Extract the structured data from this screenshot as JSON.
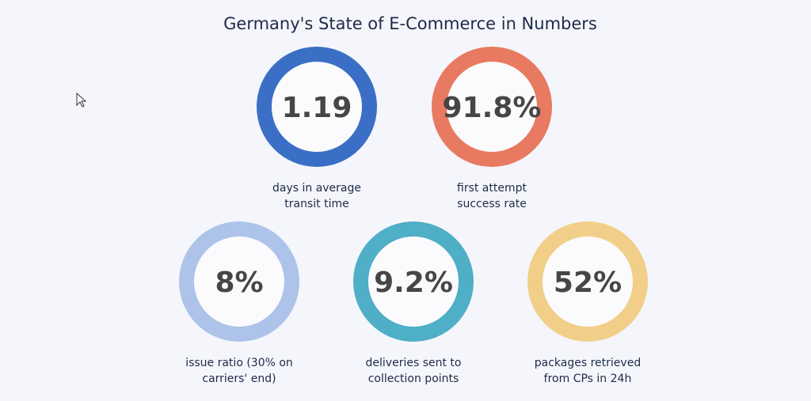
{
  "title": "Germany's State of E-Commerce in Numbers",
  "stats": [
    {
      "value": "1.19",
      "label_lines": [
        "days in average",
        "transit time"
      ]
    },
    {
      "value": "91.8%",
      "label_lines": [
        "first attempt",
        "success rate"
      ]
    },
    {
      "value": "8%",
      "label_lines": [
        "issue ratio (30% on",
        "carriers' end)"
      ]
    },
    {
      "value": "9.2%",
      "label_lines": [
        "deliveries sent to",
        "collection points"
      ]
    },
    {
      "value": "52%",
      "label_lines": [
        "packages retrieved",
        "from CPs in 24h"
      ]
    }
  ]
}
